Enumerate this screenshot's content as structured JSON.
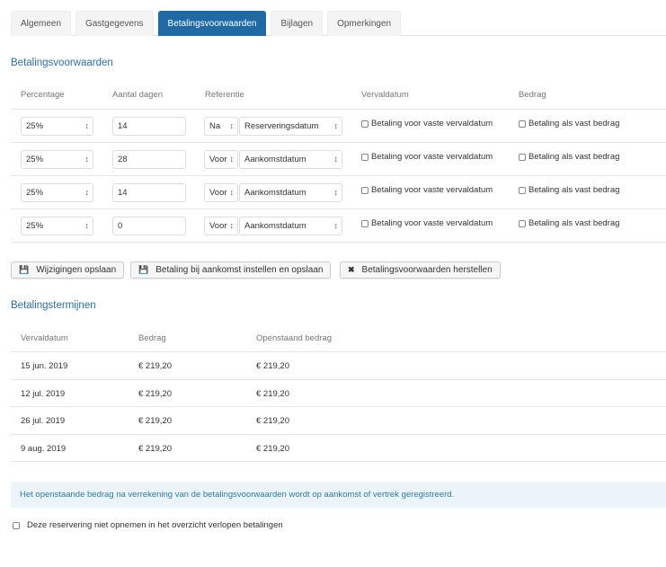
{
  "tabs": [
    {
      "label": "Algemeen"
    },
    {
      "label": "Gastgegevens"
    },
    {
      "label": "Betalingsvoorwaarden",
      "active": true
    },
    {
      "label": "Bijlagen"
    },
    {
      "label": "Opmerkingen"
    }
  ],
  "conditions": {
    "title": "Betalingsvoorwaarden",
    "headers": {
      "percentage": "Percentage",
      "days": "Aantal dagen",
      "reference": "Referentie",
      "due": "Vervaldatum",
      "amount": "Bedrag"
    },
    "rows": [
      {
        "percentage": "25%",
        "days": "14",
        "when": "Na",
        "reference": "Reserveringsdatum",
        "due_label": "Betaling voor vaste vervaldatum",
        "amount_label": "Betaling als vast bedrag"
      },
      {
        "percentage": "25%",
        "days": "28",
        "when": "Voor",
        "reference": "Aankomstdatum",
        "due_label": "Betaling voor vaste vervaldatum",
        "amount_label": "Betaling als vast bedrag"
      },
      {
        "percentage": "25%",
        "days": "14",
        "when": "Voor",
        "reference": "Aankomstdatum",
        "due_label": "Betaling voor vaste vervaldatum",
        "amount_label": "Betaling als vast bedrag"
      },
      {
        "percentage": "25%",
        "days": "0",
        "when": "Voor",
        "reference": "Aankomstdatum",
        "due_label": "Betaling voor vaste vervaldatum",
        "amount_label": "Betaling als vast bedrag"
      }
    ]
  },
  "buttons": {
    "save": "Wijzigingen opslaan",
    "arrival": "Betaling bij aankomst instellen en opslaan",
    "reset": "Betalingsvoorwaarden herstellen"
  },
  "terms": {
    "title": "Betalingstermijnen",
    "headers": {
      "due": "Vervaldatum",
      "amount": "Bedrag",
      "outstanding": "Openstaand bedrag"
    },
    "rows": [
      {
        "due": "15 jun. 2019",
        "amount": "€ 219,20",
        "outstanding": "€ 219,20"
      },
      {
        "due": "12 jul. 2019",
        "amount": "€ 219,20",
        "outstanding": "€ 219,20"
      },
      {
        "due": "26 jul. 2019",
        "amount": "€ 219,20",
        "outstanding": "€ 219,20"
      },
      {
        "due": "9 aug. 2019",
        "amount": "€ 219,20",
        "outstanding": "€ 219,20"
      }
    ]
  },
  "info": "Het openstaande bedrag na verrekening van de betalingsvoorwaarden wordt op aankomst of vertrek geregistreerd.",
  "exclude_label": "Deze reservering niet opnemen in het overzicht verlopen betalingen",
  "colors": {
    "accent": "#1f6aa5",
    "info_bg": "#eaf4f9"
  }
}
